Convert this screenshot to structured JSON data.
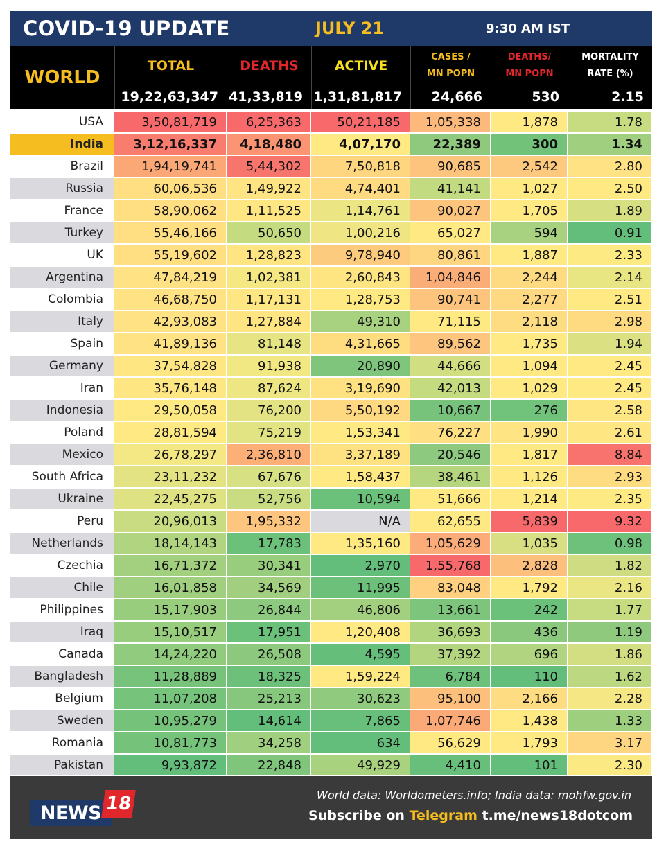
{
  "header": {
    "title": "COVID-19 UPDATE",
    "date": "JULY 21",
    "time": "9:30 AM IST"
  },
  "world": {
    "label": "WORLD",
    "columns": [
      {
        "l1": "TOTAL",
        "l2": "",
        "color": "#f5bd1f"
      },
      {
        "l1": "DEATHS",
        "l2": "",
        "color": "#e1262c"
      },
      {
        "l1": "ACTIVE",
        "l2": "",
        "color": "#f5e11f"
      },
      {
        "l1": "CASES /",
        "l2": "MN POPN",
        "color": "#f5bd1f"
      },
      {
        "l1": "DEATHS/",
        "l2": "MN POPN",
        "color": "#e1262c"
      },
      {
        "l1": "MORTALITY",
        "l2": "RATE (%)",
        "color": "#ffffff"
      }
    ],
    "values": [
      "19,22,63,347",
      "41,33,819",
      "1,31,81,817",
      "24,666",
      "530",
      "2.15"
    ]
  },
  "colors": {
    "header": "#1f3a68",
    "accent": "#f5bd1f",
    "india_highlight": "#f5bd1f",
    "na_gray": "#d9d9de"
  },
  "countries": [
    {
      "name": "USA",
      "values": [
        "3,50,81,719",
        "6,25,363",
        "50,21,185",
        "1,05,338",
        "1,878",
        "1.78"
      ],
      "colors": [
        "#f8696b",
        "#f8696b",
        "#f8696b",
        "#fcb97b",
        "#fee983",
        "#c7db80"
      ]
    },
    {
      "name": "India",
      "highlight": true,
      "values": [
        "3,12,16,337",
        "4,18,480",
        "4,07,170",
        "22,389",
        "300",
        "1.34"
      ],
      "colors": [
        "#f97d6e",
        "#fa9473",
        "#fee983",
        "#8ec97e",
        "#73c27a",
        "#9fcf7f"
      ]
    },
    {
      "name": "Brazil",
      "values": [
        "1,94,19,741",
        "5,44,302",
        "7,50,818",
        "90,685",
        "2,542",
        "2.80"
      ],
      "colors": [
        "#fba876",
        "#f8756d",
        "#fed680",
        "#fdc47d",
        "#fdc97e",
        "#fee283"
      ]
    },
    {
      "name": "Russia",
      "values": [
        "60,06,536",
        "1,49,922",
        "4,74,401",
        "41,141",
        "1,027",
        "2.50"
      ],
      "colors": [
        "#ffdf82",
        "#ffe483",
        "#fedb81",
        "#c2da80",
        "#fee983",
        "#fee983"
      ]
    },
    {
      "name": "France",
      "values": [
        "58,90,062",
        "1,11,525",
        "1,14,761",
        "90,027",
        "1,705",
        "1.89"
      ],
      "colors": [
        "#ffdf82",
        "#fee683",
        "#ebe583",
        "#fdc47d",
        "#fee983",
        "#d6df82"
      ]
    },
    {
      "name": "Turkey",
      "values": [
        "55,46,166",
        "50,650",
        "1,00,216",
        "65,027",
        "594",
        "0.91"
      ],
      "colors": [
        "#ffdf82",
        "#c5db80",
        "#efe683",
        "#fee983",
        "#a8d27f",
        "#63be7b"
      ]
    },
    {
      "name": "UK",
      "values": [
        "55,19,602",
        "1,28,823",
        "9,78,940",
        "80,861",
        "1,887",
        "2.33"
      ],
      "colors": [
        "#ffdf82",
        "#fee582",
        "#fdcb7e",
        "#fed580",
        "#fee983",
        "#feea83"
      ]
    },
    {
      "name": "Argentina",
      "values": [
        "47,84,219",
        "1,02,381",
        "2,60,843",
        "1,04,846",
        "2,244",
        "2.14"
      ],
      "colors": [
        "#ffe283",
        "#f5e883",
        "#fee582",
        "#fbad78",
        "#fedb81",
        "#e8e583"
      ]
    },
    {
      "name": "Colombia",
      "values": [
        "46,68,750",
        "1,17,131",
        "1,28,753",
        "90,741",
        "2,277",
        "2.51"
      ],
      "colors": [
        "#ffe283",
        "#fee683",
        "#fee983",
        "#fdc47d",
        "#fed981",
        "#fee983"
      ]
    },
    {
      "name": "Italy",
      "values": [
        "42,93,083",
        "1,27,884",
        "49,310",
        "71,115",
        "2,118",
        "2.98"
      ],
      "colors": [
        "#ffe283",
        "#fee582",
        "#a8d27f",
        "#fee983",
        "#fedd82",
        "#fedb81"
      ]
    },
    {
      "name": "Spain",
      "values": [
        "41,89,136",
        "81,148",
        "4,31,665",
        "89,562",
        "1,735",
        "1.94"
      ],
      "colors": [
        "#ffe283",
        "#e7e583",
        "#fedd81",
        "#fdc57d",
        "#fee983",
        "#dbe082"
      ]
    },
    {
      "name": "Germany",
      "values": [
        "37,54,828",
        "91,938",
        "20,890",
        "44,666",
        "1,094",
        "2.45"
      ],
      "colors": [
        "#fee683",
        "#f1e783",
        "#7fc57c",
        "#d2de82",
        "#fee983",
        "#fee983"
      ]
    },
    {
      "name": "Iran",
      "values": [
        "35,76,148",
        "87,624",
        "3,19,690",
        "42,013",
        "1,029",
        "2.45"
      ],
      "colors": [
        "#fee683",
        "#eee683",
        "#fee282",
        "#c5db80",
        "#fee983",
        "#fee983"
      ]
    },
    {
      "name": "Indonesia",
      "values": [
        "29,50,058",
        "76,200",
        "5,50,192",
        "10,667",
        "276",
        "2.58"
      ],
      "colors": [
        "#fee983",
        "#e3e383",
        "#fed981",
        "#77c37b",
        "#71c27a",
        "#fee683"
      ]
    },
    {
      "name": "Poland",
      "values": [
        "28,81,594",
        "75,219",
        "1,53,341",
        "76,227",
        "1,990",
        "2.61"
      ],
      "colors": [
        "#fee983",
        "#e2e382",
        "#fee983",
        "#fee082",
        "#fee482",
        "#fee683"
      ]
    },
    {
      "name": "Mexico",
      "values": [
        "26,78,297",
        "2,36,810",
        "3,37,189",
        "20,546",
        "1,817",
        "8.84"
      ],
      "colors": [
        "#f4e884",
        "#fdaf78",
        "#fee282",
        "#8dc97e",
        "#fee983",
        "#f8736d"
      ]
    },
    {
      "name": "South Africa",
      "values": [
        "23,11,232",
        "67,676",
        "1,58,437",
        "38,461",
        "1,126",
        "2.93"
      ],
      "colors": [
        "#e3e383",
        "#d7e082",
        "#fee983",
        "#b5d57f",
        "#fee983",
        "#fedd82"
      ]
    },
    {
      "name": "Ukraine",
      "values": [
        "22,45,275",
        "52,756",
        "10,594",
        "51,666",
        "1,214",
        "2.35"
      ],
      "colors": [
        "#dfe283",
        "#c9dc81",
        "#6bc07a",
        "#fee983",
        "#fee983",
        "#feea83"
      ]
    },
    {
      "name": "Peru",
      "values": [
        "20,96,013",
        "1,95,332",
        "N/A",
        "62,655",
        "5,839",
        "9.32"
      ],
      "colors": [
        "#c9dc81",
        "#fdc57d",
        "#d9d9de",
        "#fee983",
        "#f8696b",
        "#f8696b"
      ]
    },
    {
      "name": "Netherlands",
      "values": [
        "18,14,143",
        "17,783",
        "1,35,160",
        "1,05,629",
        "1,035",
        "0.98"
      ],
      "colors": [
        "#b0d47f",
        "#6bc07a",
        "#fee983",
        "#fbac78",
        "#d7df82",
        "#6ec17a"
      ]
    },
    {
      "name": "Czechia",
      "values": [
        "16,71,372",
        "30,341",
        "2,970",
        "1,55,768",
        "2,828",
        "1.82"
      ],
      "colors": [
        "#a3d07f",
        "#99cd7e",
        "#63be7b",
        "#f8696b",
        "#fdc07c",
        "#cfdc81"
      ]
    },
    {
      "name": "Chile",
      "values": [
        "16,01,858",
        "34,569",
        "11,995",
        "83,048",
        "1,792",
        "2.16"
      ],
      "colors": [
        "#9fcf7f",
        "#a2cf7f",
        "#6cc07a",
        "#fed07f",
        "#fee983",
        "#eae683"
      ]
    },
    {
      "name": "Philippines",
      "values": [
        "15,17,903",
        "26,844",
        "46,806",
        "13,661",
        "242",
        "1.77"
      ],
      "colors": [
        "#98cd7e",
        "#8dc97e",
        "#a3d07f",
        "#7dc47c",
        "#6bc07a",
        "#c7db80"
      ]
    },
    {
      "name": "Iraq",
      "values": [
        "15,10,517",
        "17,951",
        "1,20,408",
        "36,693",
        "436",
        "1.19"
      ],
      "colors": [
        "#98cd7e",
        "#6bc07a",
        "#fee983",
        "#b1d47f",
        "#8ac87d",
        "#8ec97e"
      ]
    },
    {
      "name": "Canada",
      "values": [
        "14,24,220",
        "26,508",
        "4,595",
        "37,392",
        "696",
        "1.86"
      ],
      "colors": [
        "#91cb7e",
        "#8cc87d",
        "#65bf7b",
        "#b3d57f",
        "#b0d47f",
        "#d3de82"
      ]
    },
    {
      "name": "Bangladesh",
      "values": [
        "11,28,889",
        "18,325",
        "1,59,224",
        "6,784",
        "110",
        "1.62"
      ],
      "colors": [
        "#78c37b",
        "#6cc07a",
        "#fee983",
        "#6ec17a",
        "#63be7b",
        "#bcd880"
      ]
    },
    {
      "name": "Belgium",
      "values": [
        "11,07,208",
        "25,213",
        "30,623",
        "95,100",
        "2,166",
        "2.28"
      ],
      "colors": [
        "#76c37b",
        "#87c77d",
        "#8fca7e",
        "#fdbf7c",
        "#fedc81",
        "#f5e884"
      ]
    },
    {
      "name": "Sweden",
      "values": [
        "10,95,279",
        "14,614",
        "7,865",
        "1,07,746",
        "1,438",
        "1.33"
      ],
      "colors": [
        "#75c27b",
        "#63be7b",
        "#67bf7b",
        "#fba977",
        "#fee983",
        "#9ecf7f"
      ]
    },
    {
      "name": "Romania",
      "values": [
        "10,81,773",
        "34,258",
        "634",
        "56,629",
        "1,793",
        "3.17"
      ],
      "colors": [
        "#75c27b",
        "#a0cf7f",
        "#63be7b",
        "#fee983",
        "#fee983",
        "#fed580"
      ]
    },
    {
      "name": "Pakistan",
      "values": [
        "9,93,872",
        "22,848",
        "49,929",
        "4,410",
        "101",
        "2.30"
      ],
      "colors": [
        "#63be7b",
        "#7fc57c",
        "#a9d27f",
        "#68bf7b",
        "#63be7b",
        "#fbe983"
      ]
    }
  ],
  "footer": {
    "logo_news": "NEWS",
    "logo_18": "18",
    "source": "World data: Worldometers.info; India data: mohfw.gov.in",
    "subscribe_prefix": "Subscribe on ",
    "subscribe_platform": "Telegram",
    "subscribe_link": " t.me/news18dotcom"
  }
}
